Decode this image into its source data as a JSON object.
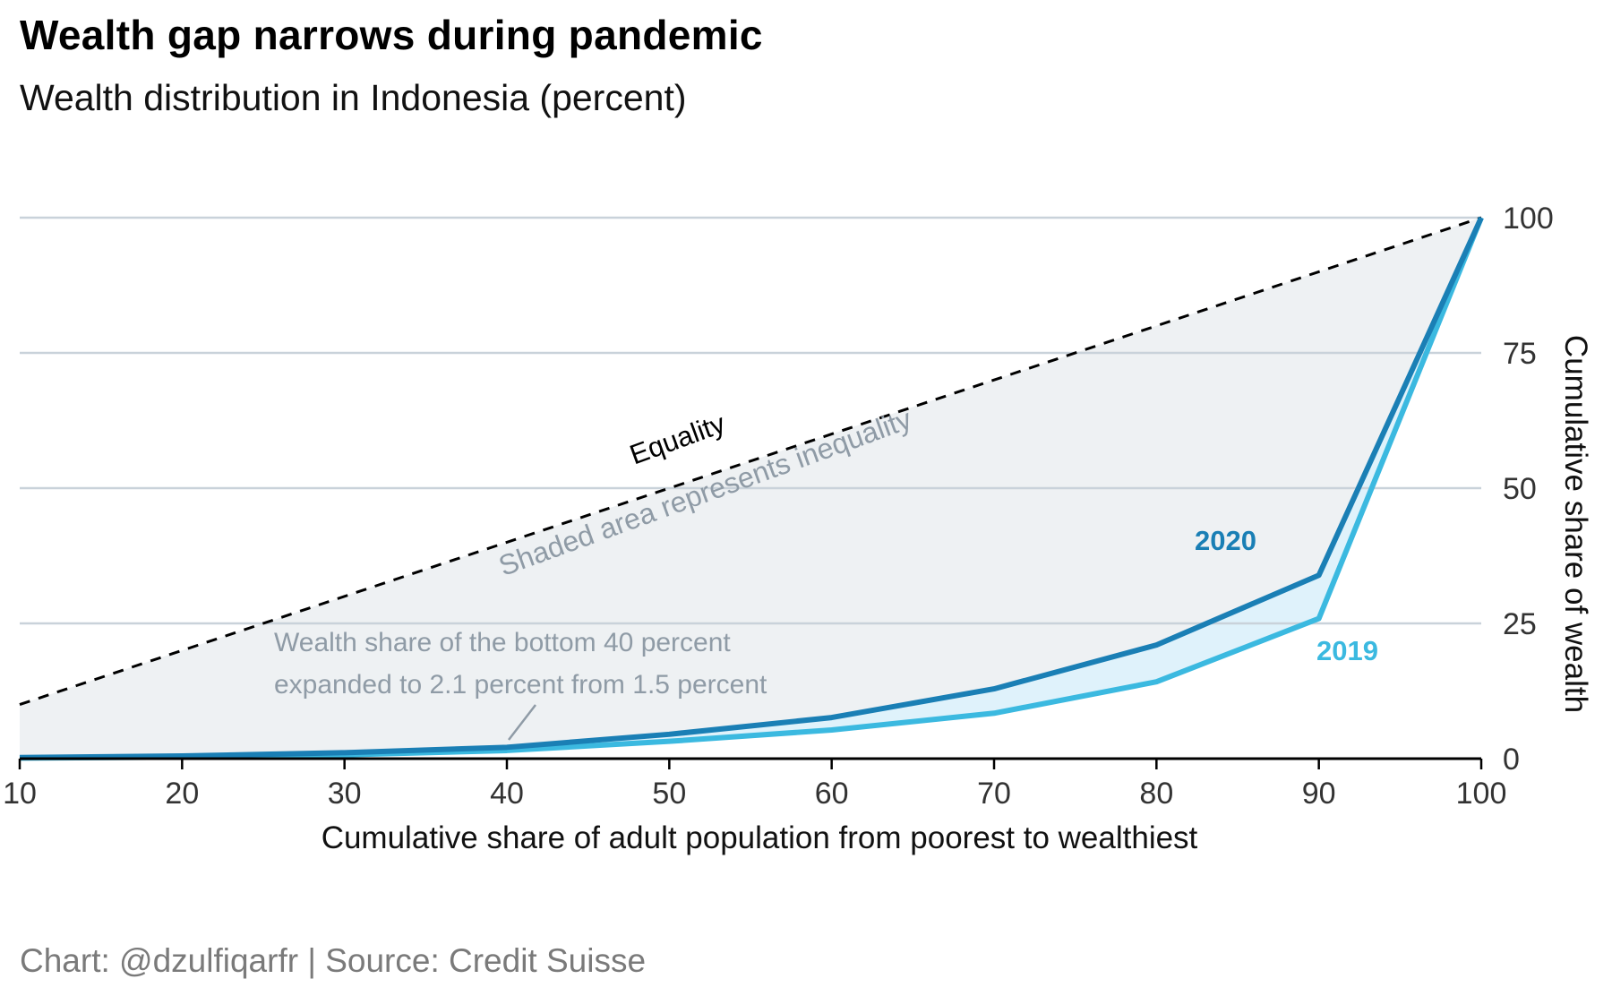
{
  "header": {
    "title": "Wealth gap narrows during pandemic",
    "subtitle": "Wealth distribution in Indonesia (percent)"
  },
  "footer": {
    "caption": "Chart: @dzulfiqarfr | Source: Credit Suisse"
  },
  "colors": {
    "series_2020": "#1a7fb5",
    "series_2019": "#3bb9e0",
    "equality": "#000000",
    "shade_inequality": "#eef1f3",
    "shade_gap": "#dff2fb",
    "grid": "#c9d2da",
    "annotation": "#8f9ba6"
  },
  "chart_data": {
    "type": "line",
    "xlabel": "Cumulative share of adult population from poorest to wealthiest",
    "ylabel": "Cumulative share of wealth",
    "x": [
      10,
      20,
      30,
      40,
      50,
      60,
      70,
      80,
      90,
      100
    ],
    "xticks": [
      "10",
      "20",
      "30",
      "40",
      "50",
      "60",
      "70",
      "80",
      "90",
      "100"
    ],
    "yticks": [
      "0",
      "25",
      "50",
      "75",
      "100"
    ],
    "xlim": [
      10,
      100
    ],
    "ylim": [
      0,
      100
    ],
    "y_axis_position": "right",
    "grid": true,
    "series": [
      {
        "name": "Equality",
        "style": "dashed",
        "values": [
          10,
          20,
          30,
          40,
          50,
          60,
          70,
          80,
          90,
          100
        ]
      },
      {
        "name": "2020",
        "values": [
          0.2,
          0.5,
          1.1,
          2.1,
          4.5,
          7.6,
          12.9,
          21.0,
          33.9,
          100
        ]
      },
      {
        "name": "2019",
        "values": [
          0.1,
          0.3,
          0.7,
          1.5,
          3.2,
          5.3,
          8.4,
          14.2,
          25.9,
          100
        ]
      }
    ],
    "annotations": {
      "equality_label": "Equality",
      "shaded_label": "Shaded area represents inequality",
      "bottom40_line1": "Wealth share of the bottom 40 percent",
      "bottom40_line2": "expanded to 2.1 percent from 1.5 percent",
      "label_2020": "2020",
      "label_2019": "2019"
    }
  }
}
